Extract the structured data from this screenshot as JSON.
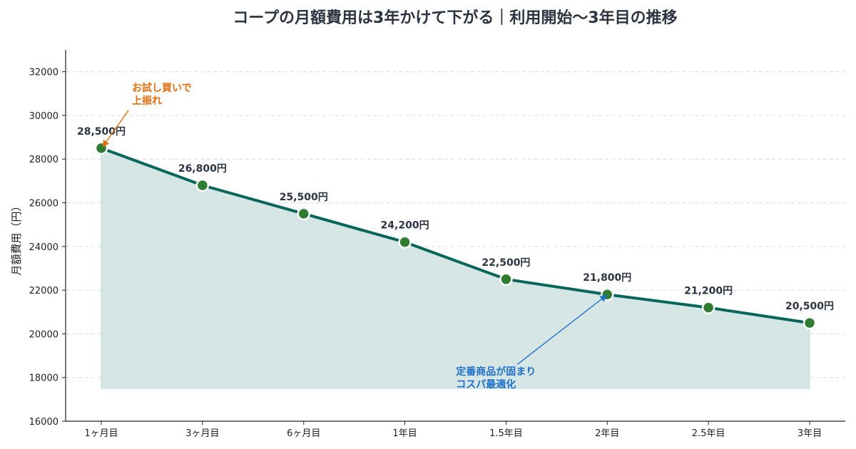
{
  "chart_data": {
    "type": "line",
    "title": "コープの月額費用は3年かけて下がる｜利用開始〜3年目の推移",
    "xlabel": "",
    "ylabel": "月額費用（円）",
    "categories": [
      "1ヶ月目",
      "3ヶ月目",
      "6ヶ月目",
      "1年目",
      "1.5年目",
      "2年目",
      "2.5年目",
      "3年目"
    ],
    "values": [
      28500,
      26800,
      25500,
      24200,
      22500,
      21800,
      21200,
      20500
    ],
    "data_labels": [
      "28,500円",
      "26,800円",
      "25,500円",
      "24,200円",
      "22,500円",
      "21,800円",
      "21,200円",
      "20,500円"
    ],
    "ylim": [
      16000,
      33000
    ],
    "yticks": [
      16000,
      18000,
      20000,
      22000,
      24000,
      26000,
      28000,
      30000,
      32000
    ],
    "area_baseline": 17500,
    "grid": true,
    "colors": {
      "line": "#08665a",
      "marker": "#2e7d32",
      "area": "#d5e6e4",
      "grid": "#dcdcdc",
      "annotation_orange": "#e07010",
      "annotation_blue": "#1e6fc8"
    },
    "annotations": [
      {
        "lines": [
          "お試し買いで",
          "上振れ"
        ],
        "point_index": 0,
        "color": "orange"
      },
      {
        "lines": [
          "定番商品が固まり",
          "コスパ最適化"
        ],
        "point_index": 5,
        "color": "blue"
      }
    ]
  }
}
